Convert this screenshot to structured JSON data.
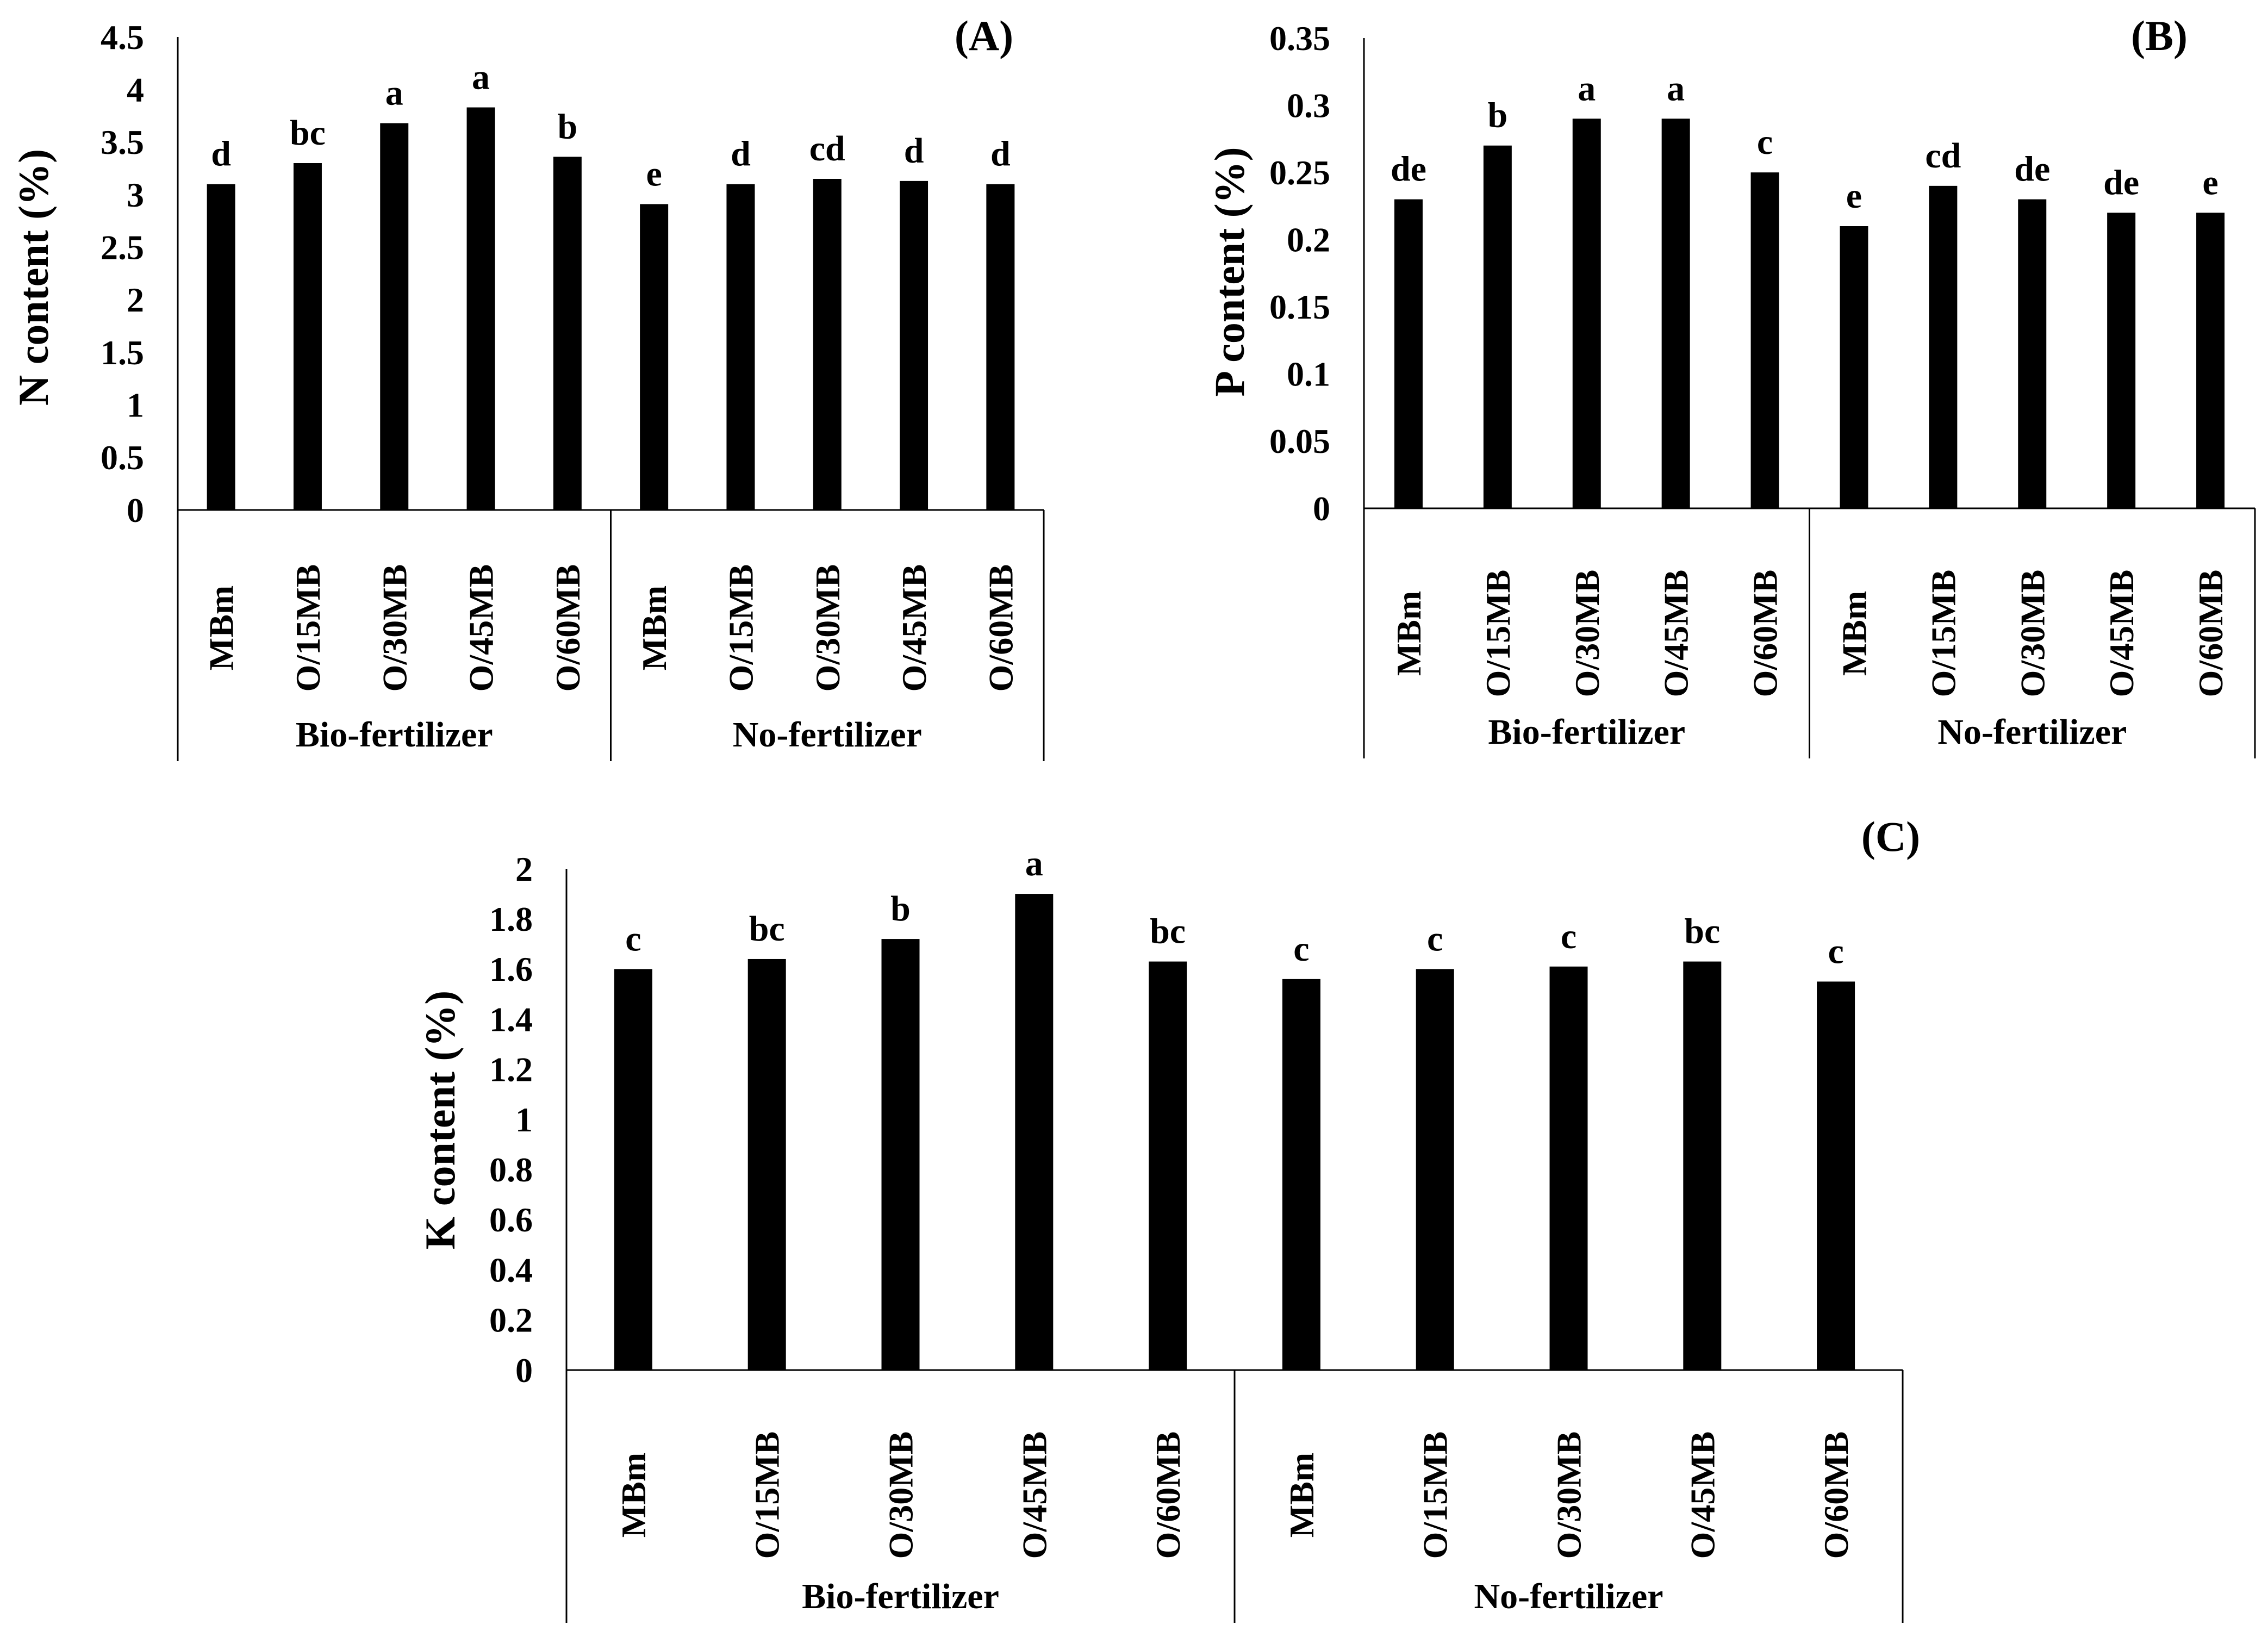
{
  "chart_data": [
    {
      "id": "A",
      "type": "bar",
      "panel_label": "(A)",
      "ylabel": "N content (%)",
      "ylim": [
        0,
        4.5
      ],
      "yticks": [
        "0",
        "0.5",
        "1",
        "1.5",
        "2",
        "2.5",
        "3",
        "3.5",
        "4",
        "4.5"
      ],
      "groups": [
        "Bio-fertilizer",
        "No-fertilizer"
      ],
      "categories": [
        "MBm",
        "O/15MB",
        "O/30MB",
        "O/45MB",
        "O/60MB",
        "MBm",
        "O/15MB",
        "O/30MB",
        "O/45MB",
        "O/60MB"
      ],
      "values": [
        3.1,
        3.3,
        3.68,
        3.83,
        3.36,
        2.91,
        3.1,
        3.15,
        3.13,
        3.1
      ],
      "letters": [
        "d",
        "bc",
        "a",
        "a",
        "b",
        "e",
        "d",
        "cd",
        "d",
        "d"
      ]
    },
    {
      "id": "B",
      "type": "bar",
      "panel_label": "(B)",
      "ylabel": "P content (%)",
      "ylim": [
        0,
        0.35
      ],
      "yticks": [
        "0",
        "0.05",
        "0.1",
        "0.15",
        "0.2",
        "0.25",
        "0.3",
        "0.35"
      ],
      "groups": [
        "Bio-fertilizer",
        "No-fertilizer"
      ],
      "categories": [
        "MBm",
        "O/15MB",
        "O/30MB",
        "O/45MB",
        "O/60MB",
        "MBm",
        "O/15MB",
        "O/30MB",
        "O/45MB",
        "O/60MB"
      ],
      "values": [
        0.23,
        0.27,
        0.29,
        0.29,
        0.25,
        0.21,
        0.24,
        0.23,
        0.22,
        0.22
      ],
      "letters": [
        "de",
        "b",
        "a",
        "a",
        "c",
        "e",
        "cd",
        "de",
        "de",
        "e"
      ]
    },
    {
      "id": "C",
      "type": "bar",
      "panel_label": "(C)",
      "ylabel": "K content (%)",
      "ylim": [
        0,
        2
      ],
      "yticks": [
        "0",
        "0.2",
        "0.4",
        "0.6",
        "0.8",
        "1",
        "1.2",
        "1.4",
        "1.6",
        "1.8",
        "2"
      ],
      "groups": [
        "Bio-fertilizer",
        "No-fertilizer"
      ],
      "categories": [
        "MBm",
        "O/15MB",
        "O/30MB",
        "O/45MB",
        "O/60MB",
        "MBm",
        "O/15MB",
        "O/30MB",
        "O/45MB",
        "O/60MB"
      ],
      "values": [
        1.6,
        1.64,
        1.72,
        1.9,
        1.63,
        1.56,
        1.6,
        1.61,
        1.63,
        1.55
      ],
      "letters": [
        "c",
        "bc",
        "b",
        "a",
        "bc",
        "c",
        "c",
        "c",
        "bc",
        "c"
      ]
    }
  ],
  "colors": {
    "bar": "#000000",
    "axis": "#000000",
    "background": "#ffffff"
  }
}
